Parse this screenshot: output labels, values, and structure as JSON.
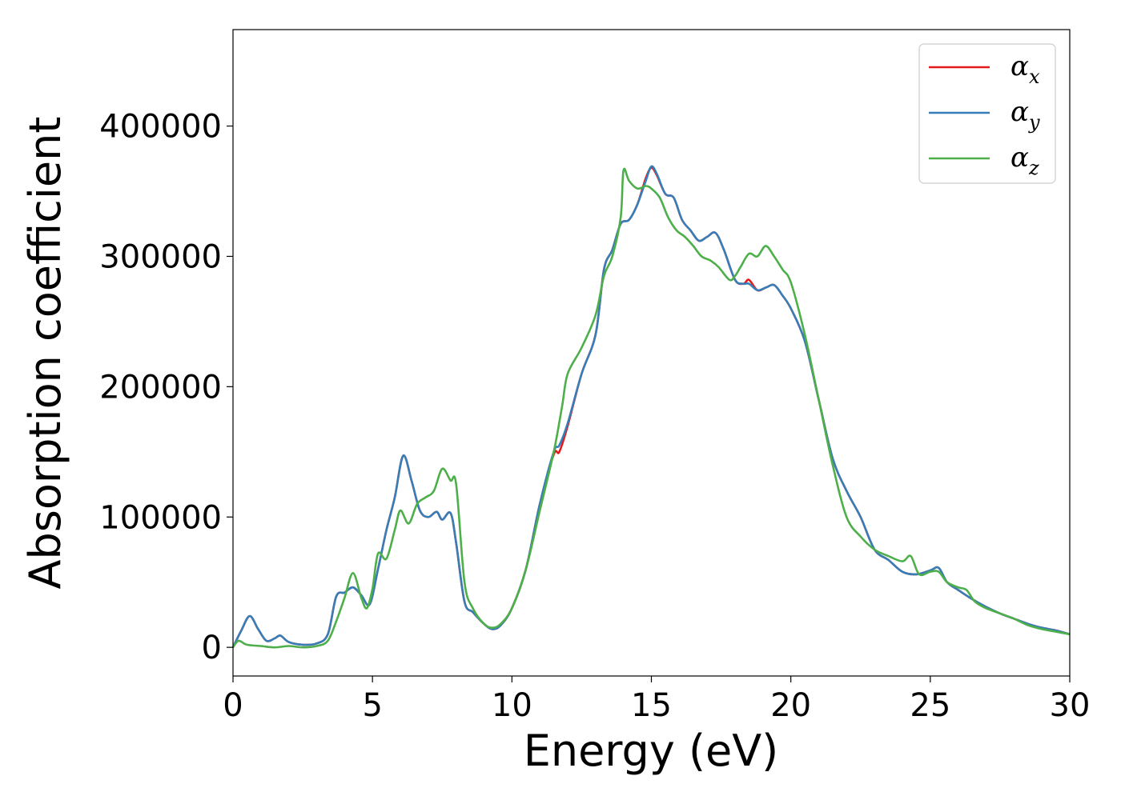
{
  "chart_data": {
    "type": "line",
    "title": "",
    "xlabel": "Energy (eV)",
    "ylabel": "Absorption coefficient",
    "xlim": [
      0,
      30
    ],
    "ylim": [
      -22000,
      474000
    ],
    "xticks": [
      0,
      5,
      10,
      15,
      20,
      25,
      30
    ],
    "xtick_labels": [
      "0",
      "5",
      "10",
      "15",
      "20",
      "25",
      "30"
    ],
    "yticks": [
      0,
      100000,
      200000,
      300000,
      400000
    ],
    "ytick_labels": [
      "0",
      "100000",
      "200000",
      "300000",
      "400000"
    ],
    "grid": false,
    "legend_position": "top-right",
    "series": [
      {
        "name": "α",
        "subscript": "x",
        "color": "#e41a1c",
        "x": [
          0,
          0.3,
          0.6,
          0.9,
          1.2,
          1.5,
          1.7,
          2.0,
          2.5,
          3.0,
          3.4,
          3.7,
          4.0,
          4.3,
          4.6,
          4.9,
          5.2,
          5.5,
          5.8,
          6.1,
          6.4,
          6.7,
          7.0,
          7.3,
          7.5,
          7.8,
          8.0,
          8.3,
          8.6,
          9.0,
          9.3,
          9.6,
          10.0,
          10.5,
          11.0,
          11.5,
          11.7,
          12.0,
          12.5,
          13.0,
          13.3,
          13.6,
          13.9,
          14.2,
          14.5,
          14.8,
          15.0,
          15.2,
          15.5,
          15.8,
          16.1,
          16.4,
          16.7,
          17.0,
          17.3,
          17.6,
          18.0,
          18.3,
          18.5,
          18.8,
          19.1,
          19.4,
          19.7,
          20.0,
          20.5,
          21.0,
          21.5,
          22.0,
          22.5,
          23.0,
          23.5,
          24.0,
          24.5,
          25.0,
          25.3,
          25.6,
          26.0,
          26.5,
          27.0,
          27.5,
          28.0,
          28.5,
          29.0,
          29.5,
          30.0
        ],
        "y": [
          0,
          13000,
          24000,
          14000,
          5000,
          7000,
          9000,
          4000,
          2000,
          3000,
          10000,
          39000,
          42000,
          46000,
          40000,
          33000,
          60000,
          90000,
          115000,
          147000,
          128000,
          105000,
          100000,
          104000,
          98000,
          103000,
          80000,
          35000,
          27000,
          18000,
          14000,
          17000,
          30000,
          60000,
          110000,
          148000,
          150000,
          170000,
          210000,
          240000,
          290000,
          305000,
          325000,
          328000,
          340000,
          360000,
          368000,
          362000,
          348000,
          345000,
          328000,
          320000,
          312000,
          315000,
          318000,
          305000,
          282000,
          279000,
          282000,
          274000,
          276000,
          278000,
          270000,
          260000,
          235000,
          190000,
          145000,
          120000,
          100000,
          75000,
          67000,
          58000,
          56000,
          59000,
          61000,
          50000,
          44000,
          37000,
          31000,
          26000,
          22000,
          18000,
          15000,
          13000,
          10000
        ]
      },
      {
        "name": "α",
        "subscript": "y",
        "color": "#377eb8",
        "x": [
          0,
          0.3,
          0.6,
          0.9,
          1.2,
          1.5,
          1.7,
          2.0,
          2.5,
          3.0,
          3.4,
          3.7,
          4.0,
          4.3,
          4.6,
          4.9,
          5.2,
          5.5,
          5.8,
          6.1,
          6.4,
          6.7,
          7.0,
          7.3,
          7.5,
          7.8,
          8.0,
          8.3,
          8.6,
          9.0,
          9.3,
          9.6,
          10.0,
          10.5,
          11.0,
          11.5,
          11.7,
          12.0,
          12.5,
          13.0,
          13.3,
          13.6,
          13.9,
          14.2,
          14.5,
          14.8,
          15.0,
          15.2,
          15.5,
          15.8,
          16.1,
          16.4,
          16.7,
          17.0,
          17.3,
          17.6,
          18.0,
          18.3,
          18.5,
          18.8,
          19.1,
          19.4,
          19.7,
          20.0,
          20.5,
          21.0,
          21.5,
          22.0,
          22.5,
          23.0,
          23.5,
          24.0,
          24.5,
          25.0,
          25.3,
          25.6,
          26.0,
          26.5,
          27.0,
          27.5,
          28.0,
          28.5,
          29.0,
          29.5,
          30.0
        ],
        "y": [
          0,
          13000,
          24000,
          14000,
          5000,
          7000,
          9000,
          4000,
          2000,
          3000,
          10000,
          39000,
          42000,
          46000,
          40000,
          33000,
          60000,
          90000,
          115000,
          147000,
          128000,
          105000,
          100000,
          104000,
          98000,
          103000,
          80000,
          35000,
          27000,
          18000,
          14000,
          17000,
          30000,
          60000,
          110000,
          150000,
          155000,
          172000,
          210000,
          240000,
          290000,
          305000,
          325000,
          328000,
          340000,
          358000,
          369000,
          363000,
          348000,
          345000,
          328000,
          320000,
          312000,
          315000,
          318000,
          305000,
          282000,
          279000,
          279000,
          274000,
          276000,
          278000,
          270000,
          260000,
          235000,
          190000,
          145000,
          120000,
          100000,
          75000,
          67000,
          58000,
          56000,
          59000,
          61000,
          50000,
          44000,
          37000,
          31000,
          26000,
          22000,
          18000,
          15000,
          13000,
          10000
        ]
      },
      {
        "name": "α",
        "subscript": "z",
        "color": "#4daf4a",
        "x": [
          0,
          0.2,
          0.5,
          1.0,
          1.5,
          2.0,
          2.5,
          3.0,
          3.4,
          3.7,
          4.0,
          4.3,
          4.6,
          4.8,
          5.0,
          5.2,
          5.5,
          5.8,
          6.0,
          6.3,
          6.6,
          6.9,
          7.2,
          7.5,
          7.8,
          8.0,
          8.3,
          8.6,
          9.0,
          9.3,
          9.6,
          10.0,
          10.5,
          11.0,
          11.5,
          11.8,
          12.0,
          12.5,
          13.0,
          13.3,
          13.6,
          13.9,
          14.0,
          14.2,
          14.5,
          14.8,
          15.0,
          15.3,
          15.6,
          15.9,
          16.2,
          16.5,
          16.8,
          17.1,
          17.4,
          17.8,
          18.0,
          18.2,
          18.5,
          18.8,
          19.1,
          19.4,
          19.7,
          20.0,
          20.5,
          21.0,
          21.5,
          22.0,
          22.5,
          23.0,
          23.5,
          24.0,
          24.3,
          24.6,
          25.0,
          25.3,
          25.6,
          26.0,
          26.3,
          26.6,
          27.0,
          27.5,
          28.0,
          28.5,
          29.0,
          29.5,
          30.0
        ],
        "y": [
          0,
          5000,
          2000,
          1000,
          0,
          1000,
          0,
          1000,
          5000,
          20000,
          38000,
          57000,
          38000,
          30000,
          45000,
          72000,
          68000,
          90000,
          105000,
          95000,
          110000,
          115000,
          120000,
          137000,
          128000,
          125000,
          50000,
          30000,
          18000,
          15000,
          18000,
          30000,
          60000,
          105000,
          150000,
          185000,
          210000,
          230000,
          255000,
          285000,
          300000,
          330000,
          366000,
          358000,
          352000,
          354000,
          352000,
          345000,
          330000,
          320000,
          315000,
          308000,
          300000,
          297000,
          292000,
          282000,
          285000,
          292000,
          302000,
          300000,
          308000,
          300000,
          290000,
          280000,
          240000,
          190000,
          140000,
          100000,
          85000,
          75000,
          70000,
          66000,
          70000,
          56000,
          58000,
          58000,
          50000,
          46000,
          44000,
          35000,
          30000,
          26000,
          22000,
          17000,
          14000,
          12000,
          10000
        ]
      }
    ]
  }
}
